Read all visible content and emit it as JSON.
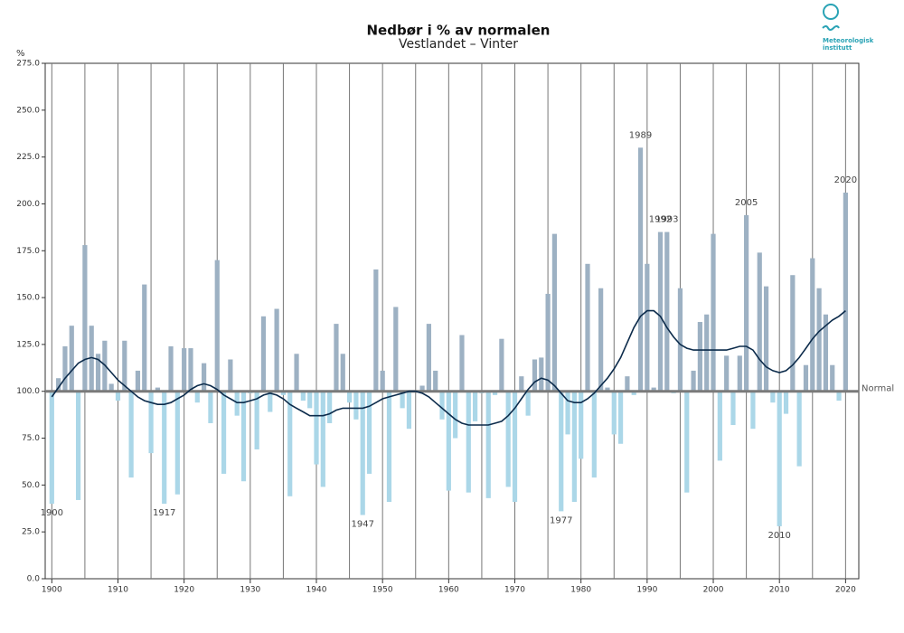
{
  "chart_data": {
    "type": "bar",
    "title": "Nedbør i % av normalen",
    "subtitle": "Vestlandet – Vinter",
    "y_label": "%",
    "logo": [
      "Meteorologisk",
      "institutt"
    ],
    "baseline": 100,
    "baseline_label": "Normal",
    "x": [
      1900,
      1901,
      1902,
      1903,
      1904,
      1905,
      1906,
      1907,
      1908,
      1909,
      1910,
      1911,
      1912,
      1913,
      1914,
      1915,
      1916,
      1917,
      1918,
      1919,
      1920,
      1921,
      1922,
      1923,
      1924,
      1925,
      1926,
      1927,
      1928,
      1929,
      1930,
      1931,
      1932,
      1933,
      1934,
      1935,
      1936,
      1937,
      1938,
      1939,
      1940,
      1941,
      1942,
      1943,
      1944,
      1945,
      1946,
      1947,
      1948,
      1949,
      1950,
      1951,
      1952,
      1953,
      1954,
      1955,
      1956,
      1957,
      1958,
      1959,
      1960,
      1961,
      1962,
      1963,
      1964,
      1965,
      1966,
      1967,
      1968,
      1969,
      1970,
      1971,
      1972,
      1973,
      1974,
      1975,
      1976,
      1977,
      1978,
      1979,
      1980,
      1981,
      1982,
      1983,
      1984,
      1985,
      1986,
      1987,
      1988,
      1989,
      1990,
      1991,
      1992,
      1993,
      1994,
      1995,
      1996,
      1997,
      1998,
      1999,
      2000,
      2001,
      2002,
      2003,
      2004,
      2005,
      2006,
      2007,
      2008,
      2009,
      2010,
      2011,
      2012,
      2013,
      2014,
      2015,
      2016,
      2017,
      2018,
      2019,
      2020
    ],
    "values": [
      40,
      107,
      124,
      135,
      42,
      178,
      135,
      120,
      127,
      104,
      95,
      127,
      54,
      111,
      157,
      67,
      102,
      40,
      124,
      45,
      123,
      123,
      94,
      115,
      83,
      170,
      56,
      117,
      87,
      52,
      99,
      69,
      140,
      89,
      144,
      98,
      44,
      120,
      95,
      91,
      61,
      49,
      83,
      136,
      120,
      94,
      85,
      34,
      56,
      165,
      111,
      41,
      145,
      91,
      80,
      100,
      103,
      136,
      111,
      85,
      47,
      75,
      130,
      46,
      84,
      99,
      43,
      98,
      128,
      49,
      41,
      108,
      87,
      117,
      118,
      152,
      184,
      36,
      77,
      41,
      64,
      168,
      54,
      155,
      102,
      77,
      72,
      108,
      98,
      230,
      168,
      102,
      185,
      185,
      99,
      155,
      46,
      111,
      137,
      141,
      184,
      63,
      119,
      82,
      119,
      194,
      80,
      174,
      156,
      94,
      28,
      88,
      162,
      60,
      114,
      171,
      155,
      141,
      114,
      95,
      206
    ],
    "smooth": [
      97,
      102,
      107,
      111,
      115,
      117,
      118,
      117,
      114,
      110,
      106,
      103,
      100,
      97,
      95,
      94,
      93,
      93,
      94,
      96,
      98,
      101,
      103,
      104,
      103,
      101,
      98,
      96,
      94,
      94,
      95,
      96,
      98,
      99,
      98,
      96,
      93,
      91,
      89,
      87,
      87,
      87,
      88,
      90,
      91,
      91,
      91,
      91,
      92,
      94,
      96,
      97,
      98,
      99,
      100,
      100,
      99,
      97,
      94,
      91,
      88,
      85,
      83,
      82,
      82,
      82,
      82,
      83,
      84,
      87,
      91,
      96,
      101,
      105,
      107,
      106,
      103,
      99,
      95,
      94,
      94,
      96,
      99,
      103,
      107,
      112,
      118,
      126,
      134,
      140,
      143,
      143,
      140,
      134,
      129,
      125,
      123,
      122,
      122,
      122,
      122,
      122,
      122,
      123,
      124,
      124,
      122,
      117,
      113,
      111,
      110,
      111,
      114,
      118,
      123,
      128,
      132,
      135,
      138,
      140,
      143
    ],
    "annotations": [
      {
        "text": "1900",
        "x": 1900
      },
      {
        "text": "1917",
        "x": 1917
      },
      {
        "text": "1947",
        "x": 1947
      },
      {
        "text": "1977",
        "x": 1977
      },
      {
        "text": "1989",
        "x": 1989
      },
      {
        "text": "1992",
        "x": 1992
      },
      {
        "text": "1993",
        "x": 1993
      },
      {
        "text": "2005",
        "x": 2005
      },
      {
        "text": "2010",
        "x": 2010
      },
      {
        "text": "2020",
        "x": 2020
      }
    ],
    "colors": {
      "above": "#9db1c3",
      "below": "#abd7e8",
      "line": "#0c2b4b",
      "baseline": "#7a7a7a"
    },
    "xlim": [
      1899,
      2022
    ],
    "ylim": [
      0,
      275
    ],
    "xticks": [
      1900,
      1910,
      1920,
      1930,
      1940,
      1950,
      1960,
      1970,
      1980,
      1990,
      2000,
      2010,
      2020
    ],
    "xgrid": [
      1900,
      1905,
      1910,
      1915,
      1920,
      1925,
      1930,
      1935,
      1940,
      1945,
      1950,
      1955,
      1960,
      1965,
      1970,
      1975,
      1980,
      1985,
      1990,
      1995,
      2000,
      2005,
      2010,
      2015,
      2020
    ],
    "yticks": [
      {
        "value": 0,
        "label": "0.0"
      },
      {
        "value": 25,
        "label": "25.0"
      },
      {
        "value": 50,
        "label": "50.0"
      },
      {
        "value": 75,
        "label": "75.0"
      },
      {
        "value": 100,
        "label": "100.0"
      },
      {
        "value": 125,
        "label": "125.0"
      },
      {
        "value": 150,
        "label": "150.0"
      },
      {
        "value": 175,
        "label": "175.0"
      },
      {
        "value": 200,
        "label": "200.0"
      },
      {
        "value": 225,
        "label": "225.0"
      },
      {
        "value": 250,
        "label": "250.0"
      },
      {
        "value": 275,
        "label": "275.0"
      }
    ]
  }
}
